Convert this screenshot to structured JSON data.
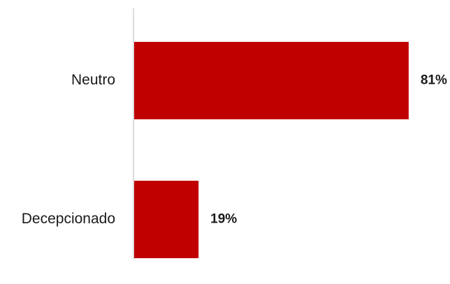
{
  "chart_data": {
    "type": "bar",
    "orientation": "horizontal",
    "categories": [
      "Neutro",
      "Decepcionado"
    ],
    "values": [
      81,
      19
    ],
    "value_labels": [
      "81%",
      "19%"
    ],
    "unit": "%",
    "xlim": [
      0,
      100
    ],
    "bar_color": "#c00000",
    "axis_color": "#d0d0d0",
    "grid": false,
    "legend": "none",
    "title": "",
    "xlabel": "",
    "ylabel": ""
  }
}
